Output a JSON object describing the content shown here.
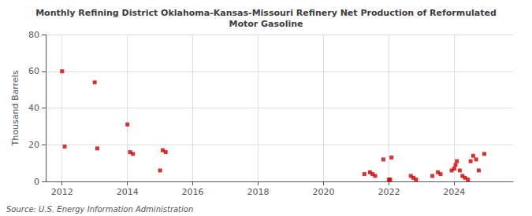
{
  "chart_data": {
    "type": "scatter",
    "title": "Monthly Refining District Oklahoma-Kansas-Missouri Refinery Net Production of Reformulated\nMotor Gasoline",
    "ylabel": "Thousand Barrels",
    "source": "Source: U.S. Energy Information Administration",
    "color": "#cc0000",
    "marker": "square",
    "grid": true,
    "xlim": [
      2011.5,
      2025.8
    ],
    "ylim": [
      0,
      80
    ],
    "xticks": [
      2012,
      2014,
      2016,
      2018,
      2020,
      2022,
      2024
    ],
    "yticks": [
      0,
      20,
      40,
      60,
      80
    ],
    "x": [
      2012.0,
      2012.08,
      2013.0,
      2013.08,
      2014.0,
      2014.08,
      2014.17,
      2015.0,
      2015.08,
      2015.17,
      2021.25,
      2021.42,
      2021.5,
      2021.58,
      2021.83,
      2022.0,
      2022.04,
      2022.08,
      2022.67,
      2022.75,
      2022.83,
      2023.33,
      2023.5,
      2023.58,
      2023.92,
      2024.0,
      2024.04,
      2024.08,
      2024.17,
      2024.25,
      2024.33,
      2024.42,
      2024.5,
      2024.58,
      2024.67,
      2024.75,
      2024.92
    ],
    "values": [
      60,
      19,
      54,
      18,
      31,
      16,
      15,
      6,
      17,
      16,
      4,
      5,
      4,
      3,
      12,
      1,
      1,
      13,
      3,
      2,
      1,
      3,
      5,
      4,
      6,
      7,
      9,
      11,
      6,
      3,
      2,
      1,
      11,
      14,
      12,
      6,
      15
    ]
  }
}
